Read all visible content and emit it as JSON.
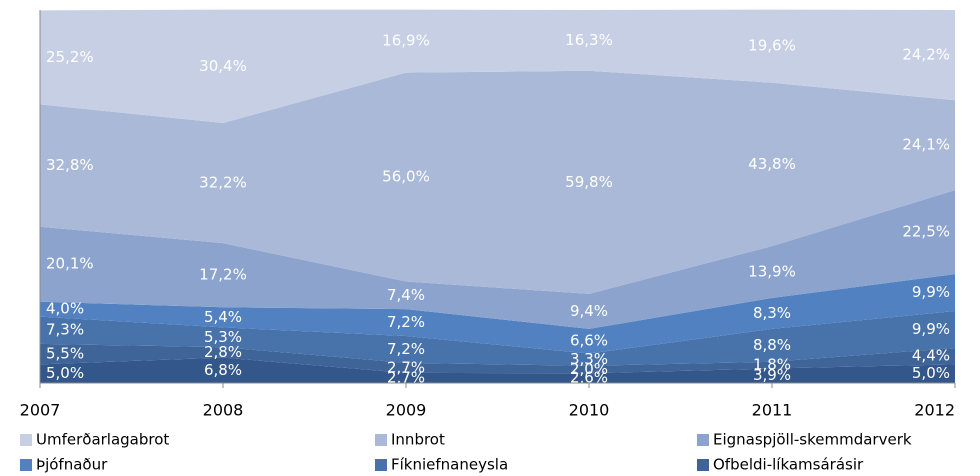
{
  "chart_data": {
    "type": "stacked_area",
    "x": [
      2007,
      2008,
      2009,
      2010,
      2011,
      2012
    ],
    "xlim": [
      2007,
      2012
    ],
    "xticks": [
      2007,
      2008,
      2009,
      2010,
      2011,
      2012
    ],
    "ylim": [
      0,
      100
    ],
    "series": [
      {
        "name": "Umferðarlagabrot",
        "color": "#c6cfe4",
        "values": [
          25.2,
          30.4,
          16.9,
          16.3,
          19.6,
          24.2
        ],
        "value_labels": [
          "25,2%",
          "30,4%",
          "16,9%",
          "16,3%",
          "19,6%",
          "24,2%"
        ]
      },
      {
        "name": "Innbrot",
        "color": "#aab9d8",
        "values": [
          32.8,
          32.2,
          56.0,
          59.8,
          43.8,
          24.1
        ],
        "value_labels": [
          "32,8%",
          "32,2%",
          "56,0%",
          "59,8%",
          "43,8%",
          "24,1%"
        ]
      },
      {
        "name": "Eignaspjöll-skemmdarverk",
        "color": "#8ba3cd",
        "values": [
          20.1,
          17.2,
          7.4,
          9.4,
          13.9,
          22.5
        ],
        "value_labels": [
          "20,1%",
          "17,2%",
          "7,4%",
          "9,4%",
          "13,9%",
          "22,5%"
        ]
      },
      {
        "name": "Þjófnaður",
        "color": "#5181c1",
        "values": [
          4.0,
          5.4,
          7.2,
          6.6,
          8.3,
          9.9
        ],
        "value_labels": [
          "4,0%",
          "5,4%",
          "7,2%",
          "6,6%",
          "8,3%",
          "9,9%"
        ]
      },
      {
        "name": "Fíkniefnaneysla",
        "color": "#4773aa",
        "values": [
          7.3,
          5.3,
          7.2,
          3.3,
          8.8,
          9.9
        ],
        "value_labels": [
          "7,3%",
          "5,3%",
          "7,2%",
          "3,3%",
          "8,8%",
          "9,9%"
        ]
      },
      {
        "name": "Ofbeldi-líkamsárásir",
        "color": "#3e6498",
        "values": [
          5.5,
          2.8,
          2.7,
          2.0,
          1.8,
          4.4
        ],
        "value_labels": [
          "5,5%",
          "2,8%",
          "2,7%",
          "2,0%",
          "1,8%",
          "4,4%"
        ]
      },
      {
        "color": "#33578a",
        "values": [
          5.0,
          6.8,
          2.7,
          2.6,
          3.9,
          5.0
        ],
        "value_labels": [
          "5,0%",
          "6,8%",
          "2,7%",
          "2,6%",
          "3,9%",
          "5,0%"
        ]
      }
    ]
  }
}
